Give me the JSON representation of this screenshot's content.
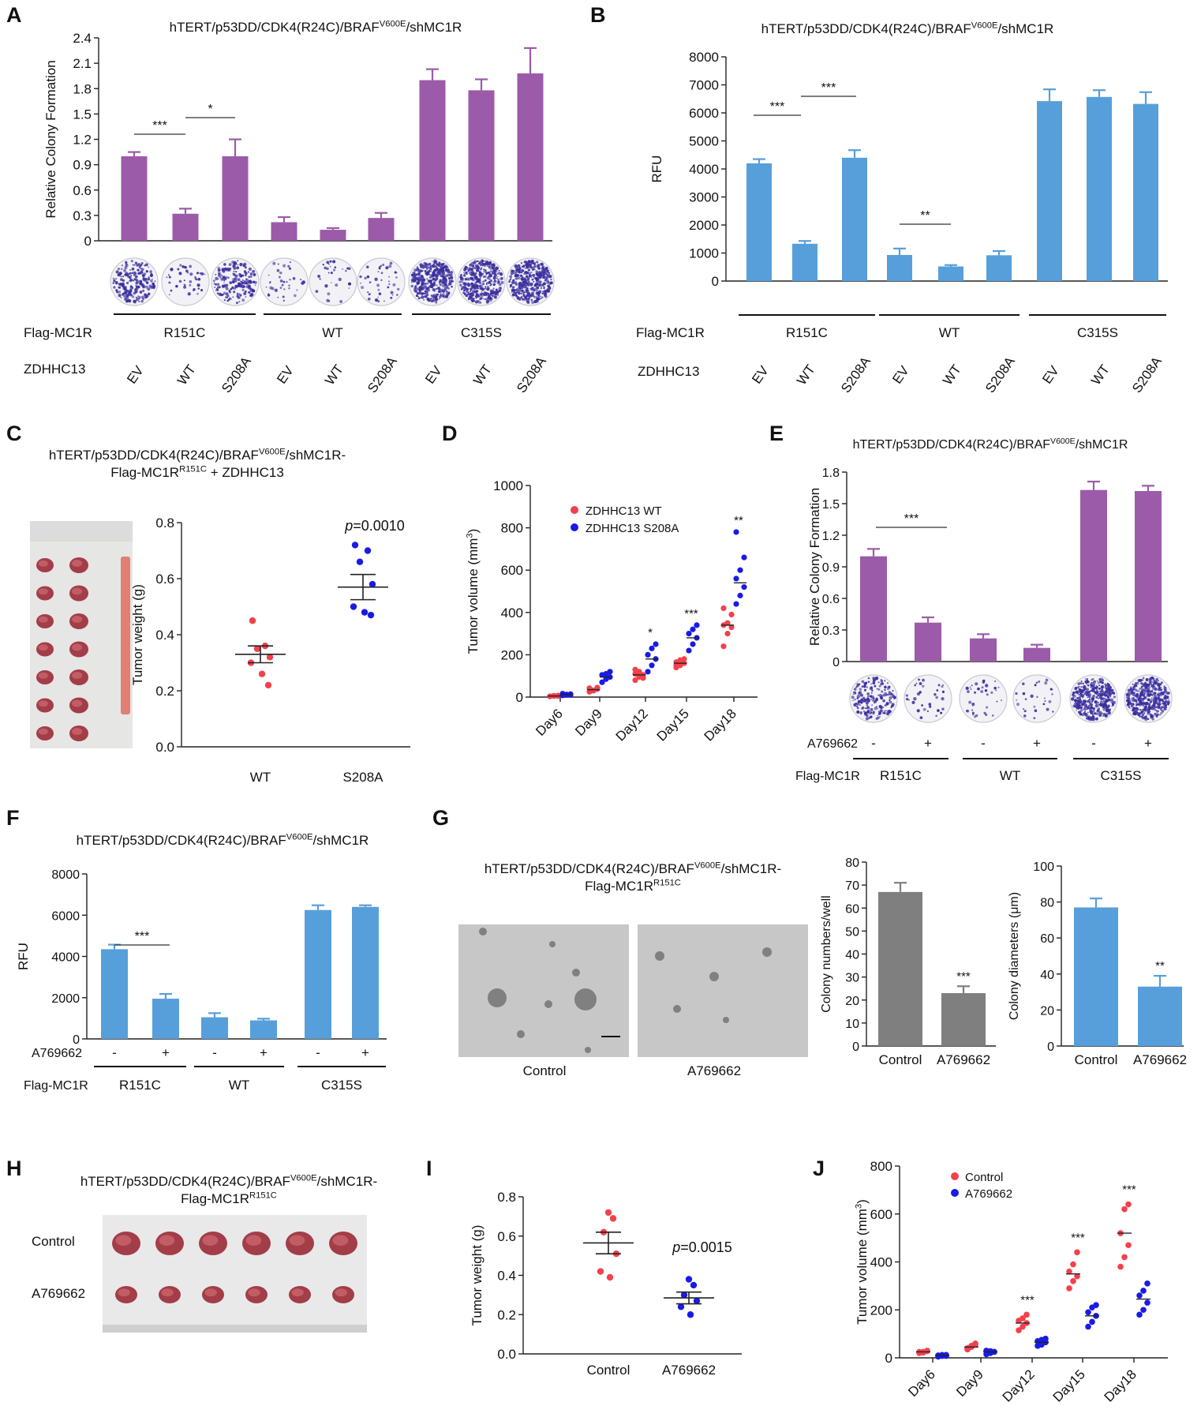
{
  "construct_title": "hTERT/p53DD/CDK4(R24C)/BRAF",
  "construct_sup": "V600E",
  "construct_tail": "/shMC1R",
  "construct_tail_dash": "/shMC1R-",
  "flag_line_prefix": "Flag-MC1R",
  "flag_line_sup": "R151C",
  "flag_line_suffix": " + ZDHHC13",
  "labels": {
    "flag_mc1r": "Flag-MC1R",
    "zdhhc13": "ZDHHC13",
    "a769662": "A769662",
    "control": "Control",
    "rcf_axis": "Relative Colony Formation",
    "rfu_axis": "RFU",
    "tumor_weight_axis": "Tumor weight (g)",
    "tumor_volume_axis": "Tumor volume (mm",
    "tumor_volume_sup": "3",
    "tumor_volume_close": ")",
    "colony_numbers_axis": "Colony numbers/well",
    "colony_diameters_axis": "Colony diameters (μm)"
  },
  "panel_letters": [
    "A",
    "B",
    "C",
    "D",
    "E",
    "F",
    "G",
    "H",
    "I",
    "J"
  ],
  "colors": {
    "purple": "#9b5ba8",
    "blue": "#579fda",
    "gray": "#7f7f7f",
    "red": "#f2414b",
    "dot_blue": "#1a1ae6",
    "plate": "#3b2f9e"
  },
  "chart_data": [
    {
      "id": "A",
      "type": "bar",
      "title": "hTERT/p53DD/CDK4(R24C)/BRAFV600E/shMC1R",
      "ylabel": "Relative Colony Formation",
      "ylim": [
        0,
        2.4
      ],
      "yticks": [
        "0",
        "0.3",
        "0.6",
        "0.9",
        "1.2",
        "1.5",
        "1.8",
        "2.1",
        "2.4"
      ],
      "groups": [
        "R151C",
        "WT",
        "C315S"
      ],
      "categories": [
        "EV",
        "WT",
        "S208A",
        "EV",
        "WT",
        "S208A",
        "EV",
        "WT",
        "S208A"
      ],
      "values": [
        1.0,
        0.32,
        1.0,
        0.22,
        0.13,
        0.27,
        1.9,
        1.78,
        1.98
      ],
      "errors": [
        0.05,
        0.06,
        0.2,
        0.06,
        0.02,
        0.06,
        0.13,
        0.13,
        0.3
      ],
      "plate_density": [
        0.45,
        0.08,
        0.4,
        0.07,
        0.05,
        0.08,
        0.85,
        0.85,
        0.9
      ],
      "significance": [
        {
          "from": 0,
          "to": 1,
          "label": "***"
        },
        {
          "from": 1,
          "to": 2,
          "label": "*"
        }
      ]
    },
    {
      "id": "B",
      "type": "bar",
      "title": "hTERT/p53DD/CDK4(R24C)/BRAFV600E/shMC1R",
      "ylabel": "RFU",
      "ylim": [
        0,
        8000
      ],
      "yticks": [
        "0",
        "1000",
        "2000",
        "3000",
        "4000",
        "5000",
        "6000",
        "7000",
        "8000"
      ],
      "groups": [
        "R151C",
        "WT",
        "C315S"
      ],
      "categories": [
        "EV",
        "WT",
        "S208A",
        "EV",
        "WT",
        "S208A",
        "EV",
        "WT",
        "S208A"
      ],
      "values": [
        4200,
        1330,
        4400,
        930,
        520,
        920,
        6420,
        6570,
        6320
      ],
      "errors": [
        150,
        100,
        270,
        230,
        50,
        150,
        420,
        240,
        420
      ],
      "significance": [
        {
          "from": 0,
          "to": 1,
          "label": "***"
        },
        {
          "from": 1,
          "to": 2,
          "label": "***"
        },
        {
          "from": 3,
          "to": 4,
          "label": "**"
        }
      ]
    },
    {
      "id": "C",
      "type": "scatter",
      "title": "hTERT/p53DD/CDK4(R24C)/BRAFV600E/shMC1R- Flag-MC1RR151C + ZDHHC13",
      "photo_labels": [
        "WT",
        "S208A"
      ],
      "ylabel": "Tumor weight (g)",
      "ylim": [
        0,
        0.8
      ],
      "yticks": [
        "0.0",
        "0.2",
        "0.4",
        "0.6",
        "0.8"
      ],
      "categories": [
        "WT",
        "S208A"
      ],
      "series": [
        {
          "name": "WT",
          "values": [
            0.45,
            0.36,
            0.35,
            0.32,
            0.3,
            0.26,
            0.22
          ],
          "mean": 0.33,
          "sem": 0.03
        },
        {
          "name": "S208A",
          "values": [
            0.72,
            0.7,
            0.66,
            0.58,
            0.5,
            0.48,
            0.47
          ],
          "mean": 0.57,
          "sem": 0.045
        }
      ],
      "annotation": "p=0.0010"
    },
    {
      "id": "D",
      "type": "scatter",
      "ylabel": "Tumor volume (mm3)",
      "ylim": [
        0,
        1000
      ],
      "yticks": [
        "0",
        "200",
        "400",
        "600",
        "800",
        "1000"
      ],
      "categories": [
        "Day6",
        "Day9",
        "Day12",
        "Day15",
        "Day18"
      ],
      "series": [
        {
          "name": "ZDHHC13 WT",
          "means": [
            5,
            35,
            105,
            160,
            340
          ],
          "points": [
            [
              3,
              5,
              7,
              4,
              6,
              5
            ],
            [
              25,
              32,
              38,
              42,
              30,
              45
            ],
            [
              80,
              95,
              105,
              110,
              120,
              90,
              130
            ],
            [
              140,
              150,
              160,
              165,
              175,
              180,
              150
            ],
            [
              240,
              300,
              330,
              340,
              350,
              390,
              420
            ]
          ]
        },
        {
          "name": "ZDHHC13 S208A",
          "means": [
            12,
            95,
            180,
            280,
            540
          ],
          "points": [
            [
              8,
              10,
              14,
              16,
              12,
              10
            ],
            [
              70,
              85,
              95,
              105,
              110,
              120
            ],
            [
              120,
              150,
              180,
              200,
              230,
              250
            ],
            [
              220,
              250,
              280,
              300,
              320,
              340
            ],
            [
              440,
              480,
              520,
              560,
              600,
              660,
              780
            ]
          ]
        }
      ],
      "significance": [
        "",
        "",
        "*",
        "***",
        "**"
      ]
    },
    {
      "id": "E",
      "type": "bar",
      "title": "hTERT/p53DD/CDK4(R24C)/BRAFV600E/shMC1R",
      "ylabel": "Relative Colony Formation",
      "ylim": [
        0,
        1.8
      ],
      "yticks": [
        "0",
        "0.3",
        "0.6",
        "0.9",
        "1.2",
        "1.5",
        "1.8"
      ],
      "groups": [
        "R151C",
        "WT",
        "C315S"
      ],
      "categories": [
        "-",
        "+",
        "-",
        "+",
        "-",
        "+"
      ],
      "values": [
        1.0,
        0.37,
        0.22,
        0.13,
        1.63,
        1.62
      ],
      "errors": [
        0.07,
        0.05,
        0.04,
        0.03,
        0.08,
        0.05
      ],
      "plate_density": [
        0.45,
        0.06,
        0.07,
        0.05,
        0.85,
        0.88
      ],
      "significance": [
        {
          "from": 0,
          "to": 1,
          "label": "***"
        }
      ]
    },
    {
      "id": "F",
      "type": "bar",
      "title": "hTERT/p53DD/CDK4(R24C)/BRAFV600E/shMC1R",
      "ylabel": "RFU",
      "ylim": [
        0,
        8000
      ],
      "yticks": [
        "0",
        "2000",
        "4000",
        "6000",
        "8000"
      ],
      "groups": [
        "R151C",
        "WT",
        "C315S"
      ],
      "categories": [
        "-",
        "+",
        "-",
        "+",
        "-",
        "+"
      ],
      "values": [
        4350,
        1950,
        1050,
        900,
        6250,
        6400
      ],
      "errors": [
        220,
        230,
        200,
        80,
        230,
        80
      ],
      "significance": [
        {
          "from": 0,
          "to": 1,
          "label": "***"
        }
      ]
    },
    {
      "id": "G1",
      "type": "bar",
      "title": "hTERT/p53DD/CDK4(R24C)/BRAFV600E/shMC1R- Flag-MC1RR151C",
      "photo_labels": [
        "Control",
        "A769662"
      ],
      "ylabel": "Colony numbers/well",
      "ylim": [
        0,
        80
      ],
      "yticks": [
        "0",
        "10",
        "20",
        "30",
        "40",
        "50",
        "60",
        "70",
        "80"
      ],
      "categories": [
        "Control",
        "A769662"
      ],
      "values": [
        67,
        23
      ],
      "errors": [
        4,
        3
      ],
      "significance": [
        "",
        "***"
      ]
    },
    {
      "id": "G2",
      "type": "bar",
      "ylabel": "Colony diameters (μm)",
      "ylim": [
        0,
        100
      ],
      "yticks": [
        "0",
        "20",
        "40",
        "60",
        "80",
        "100"
      ],
      "categories": [
        "Control",
        "A769662"
      ],
      "values": [
        77,
        33
      ],
      "errors": [
        5,
        6
      ],
      "significance": [
        "",
        "**"
      ]
    },
    {
      "id": "H",
      "type": "photo",
      "title": "hTERT/p53DD/CDK4(R24C)/BRAFV600E/shMC1R- Flag-MC1RR151C",
      "row_labels": [
        "Control",
        "A769662"
      ]
    },
    {
      "id": "I",
      "type": "scatter",
      "ylabel": "Tumor weight (g)",
      "ylim": [
        0,
        0.8
      ],
      "yticks": [
        "0.0",
        "0.2",
        "0.4",
        "0.6",
        "0.8"
      ],
      "categories": [
        "Control",
        "A769662"
      ],
      "series": [
        {
          "name": "Control",
          "values": [
            0.72,
            0.69,
            0.62,
            0.51,
            0.42,
            0.39
          ],
          "mean": 0.565,
          "sem": 0.055
        },
        {
          "name": "A769662",
          "values": [
            0.38,
            0.35,
            0.3,
            0.27,
            0.24,
            0.2
          ],
          "mean": 0.285,
          "sem": 0.03
        }
      ],
      "annotation": "p=0.0015"
    },
    {
      "id": "J",
      "type": "scatter",
      "ylabel": "Tumor volume (mm3)",
      "ylim": [
        0,
        800
      ],
      "yticks": [
        "0",
        "200",
        "400",
        "600",
        "800"
      ],
      "categories": [
        "Day6",
        "Day9",
        "Day12",
        "Day15",
        "Day18"
      ],
      "series": [
        {
          "name": "Control",
          "means": [
            25,
            45,
            145,
            350,
            520
          ],
          "points": [
            [
              20,
              25,
              30,
              25,
              22,
              28
            ],
            [
              35,
              45,
              55,
              40,
              50,
              60
            ],
            [
              115,
              130,
              145,
              155,
              165,
              180
            ],
            [
              290,
              320,
              340,
              360,
              390,
              440
            ],
            [
              380,
              420,
              470,
              520,
              620,
              640
            ]
          ]
        },
        {
          "name": "A769662",
          "means": [
            10,
            25,
            65,
            175,
            245
          ],
          "points": [
            [
              5,
              8,
              12,
              10,
              12,
              8
            ],
            [
              15,
              20,
              25,
              30,
              28,
              25
            ],
            [
              50,
              55,
              65,
              70,
              75,
              80
            ],
            [
              130,
              150,
              175,
              190,
              210,
              220
            ],
            [
              180,
              200,
              230,
              260,
              280,
              310
            ]
          ]
        }
      ],
      "significance": [
        "",
        "",
        "***",
        "***",
        "***"
      ]
    }
  ]
}
